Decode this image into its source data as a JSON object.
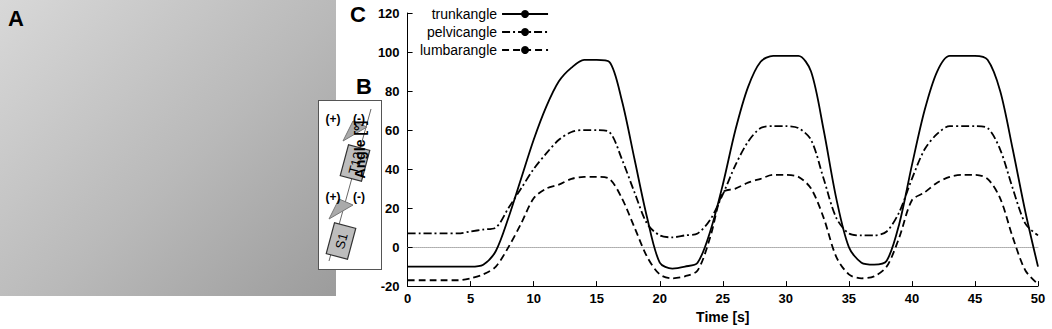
{
  "panels": {
    "A": {
      "label": "A"
    },
    "B": {
      "label": "B",
      "signs": [
        "(+)",
        "(-)"
      ],
      "sensors": [
        "T12",
        "S1"
      ]
    }
  },
  "chart_data": {
    "label": "C",
    "type": "line",
    "x_label": "Time [s]",
    "y_label": "Angle [°]",
    "x": [
      0,
      1,
      2,
      3,
      4,
      5,
      6,
      7,
      8,
      9,
      10,
      11,
      12,
      13,
      14,
      15,
      16,
      17,
      18,
      19,
      20,
      21,
      22,
      23,
      24,
      25,
      26,
      27,
      28,
      29,
      30,
      31,
      32,
      33,
      34,
      35,
      36,
      37,
      38,
      39,
      40,
      41,
      42,
      43,
      44,
      45,
      46,
      47,
      48,
      49,
      50
    ],
    "series": [
      {
        "name": "trunkangle",
        "color": "#000000",
        "line_style": "solid",
        "values": [
          -10,
          -10,
          -10,
          -10,
          -10,
          -10,
          -9,
          -2,
          15,
          35,
          55,
          72,
          85,
          92,
          96,
          96,
          95,
          75,
          45,
          15,
          -8,
          -11,
          -10,
          -8,
          8,
          32,
          60,
          82,
          95,
          98,
          98,
          98,
          90,
          60,
          25,
          0,
          -8,
          -9,
          -7,
          12,
          42,
          70,
          90,
          98,
          98,
          98,
          96,
          80,
          50,
          18,
          -10
        ]
      },
      {
        "name": "pelvicangle",
        "color": "#000000",
        "line_style": "dashdot",
        "values": [
          7,
          7,
          7,
          7,
          7,
          8,
          9,
          10,
          20,
          30,
          40,
          48,
          55,
          59,
          60,
          60,
          59,
          45,
          28,
          12,
          6,
          5,
          6,
          7,
          14,
          27,
          42,
          54,
          61,
          62,
          62,
          61,
          55,
          35,
          15,
          7,
          6,
          6,
          8,
          18,
          35,
          50,
          58,
          62,
          62,
          62,
          61,
          50,
          30,
          12,
          6
        ]
      },
      {
        "name": "lumbarangle",
        "color": "#000000",
        "line_style": "dashed",
        "values": [
          -17,
          -17,
          -17,
          -17,
          -17,
          -16,
          -14,
          -10,
          0,
          12,
          25,
          30,
          32,
          35,
          36,
          36,
          35,
          25,
          10,
          -5,
          -14,
          -16,
          -15,
          -12,
          5,
          28,
          30,
          33,
          35,
          37,
          37,
          36,
          30,
          15,
          -5,
          -14,
          -16,
          -15,
          -10,
          5,
          24,
          28,
          33,
          36,
          37,
          37,
          35,
          25,
          5,
          -12,
          -19
        ]
      }
    ],
    "xlim": [
      0,
      50
    ],
    "xticks": [
      0,
      5,
      10,
      15,
      20,
      25,
      30,
      35,
      40,
      45,
      50
    ],
    "ylim": [
      -20,
      120
    ],
    "yticks": [
      -20,
      0,
      20,
      40,
      60,
      80,
      100,
      120
    ],
    "legend": "upper left"
  }
}
